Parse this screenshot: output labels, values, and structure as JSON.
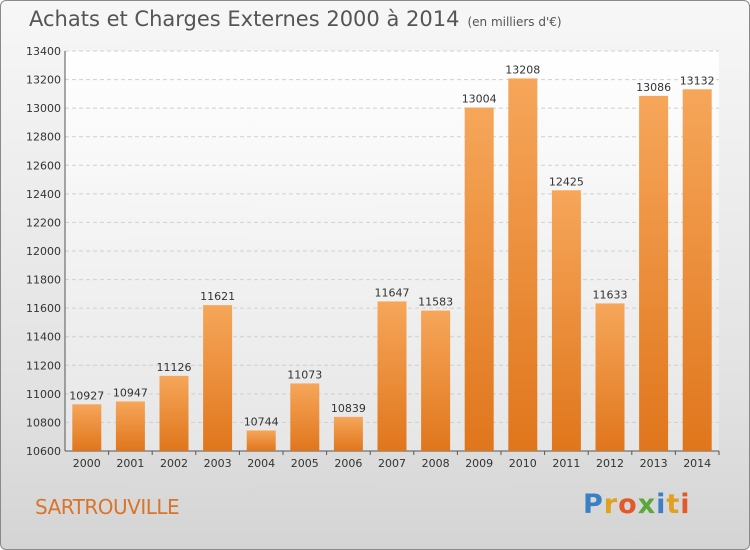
{
  "header": {
    "title": "Achats et Charges Externes 2000 à 2014",
    "unit": "(en milliers d'€)"
  },
  "footer": {
    "city": "SARTROUVILLE",
    "logo": "Proxiti"
  },
  "colors": {
    "bar_light": "#f6a65a",
    "bar_dark": "#e0761c",
    "city": "#d9742a"
  },
  "chart_data": {
    "type": "bar",
    "title": "Achats et Charges Externes 2000 à 2014",
    "subtitle": "(en milliers d'€)",
    "categories": [
      "2000",
      "2001",
      "2002",
      "2003",
      "2004",
      "2005",
      "2006",
      "2007",
      "2008",
      "2009",
      "2010",
      "2011",
      "2012",
      "2013",
      "2014"
    ],
    "values": [
      10927,
      10947,
      11126,
      11621,
      10744,
      11073,
      10839,
      11647,
      11583,
      13004,
      13208,
      12425,
      11633,
      13086,
      13132
    ],
    "ylim": [
      10600,
      13400
    ],
    "yticks": [
      10600,
      10800,
      11000,
      11200,
      11400,
      11600,
      11800,
      12000,
      12200,
      12400,
      12600,
      12800,
      13000,
      13200,
      13400
    ],
    "grid": true,
    "data_labels": true
  }
}
